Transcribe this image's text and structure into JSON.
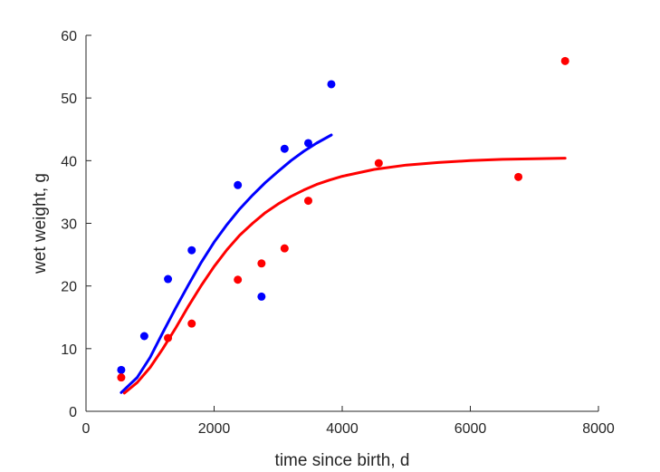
{
  "chart_data": {
    "type": "scatter",
    "xlabel": "time since birth, d",
    "ylabel": "wet weight, g",
    "xlim": [
      0,
      8000
    ],
    "ylim": [
      0,
      60
    ],
    "xticks": [
      "0",
      "2000",
      "4000",
      "6000",
      "8000"
    ],
    "yticks": [
      "0",
      "10",
      "20",
      "30",
      "40",
      "50",
      "60"
    ],
    "grid": false,
    "legend": "none",
    "series": [
      {
        "color": "#0000ff",
        "points": [
          [
            550,
            6.6
          ],
          [
            910,
            12.0
          ],
          [
            1280,
            21.1
          ],
          [
            1650,
            25.7
          ],
          [
            2370,
            36.1
          ],
          [
            2740,
            18.3
          ],
          [
            3100,
            41.9
          ],
          [
            3470,
            42.8
          ],
          [
            3830,
            52.2
          ]
        ],
        "fit_curve": [
          [
            550,
            3.0
          ],
          [
            800,
            5.4
          ],
          [
            1000,
            8.6
          ],
          [
            1200,
            12.6
          ],
          [
            1400,
            16.5
          ],
          [
            1600,
            20.2
          ],
          [
            1800,
            23.8
          ],
          [
            2000,
            27.0
          ],
          [
            2200,
            29.8
          ],
          [
            2400,
            32.3
          ],
          [
            2600,
            34.5
          ],
          [
            2800,
            36.5
          ],
          [
            3000,
            38.3
          ],
          [
            3200,
            40.0
          ],
          [
            3400,
            41.5
          ],
          [
            3600,
            42.8
          ],
          [
            3830,
            44.1
          ]
        ]
      },
      {
        "color": "#ff0000",
        "points": [
          [
            550,
            5.4
          ],
          [
            1280,
            11.7
          ],
          [
            1650,
            14.0
          ],
          [
            2370,
            21.0
          ],
          [
            2740,
            23.6
          ],
          [
            3100,
            26.0
          ],
          [
            3470,
            33.6
          ],
          [
            4570,
            39.6
          ],
          [
            6750,
            37.4
          ],
          [
            7480,
            55.9
          ]
        ],
        "fit_curve": [
          [
            600,
            2.9
          ],
          [
            800,
            4.6
          ],
          [
            1000,
            7.0
          ],
          [
            1200,
            10.0
          ],
          [
            1400,
            13.3
          ],
          [
            1600,
            16.8
          ],
          [
            1800,
            20.1
          ],
          [
            2000,
            23.1
          ],
          [
            2200,
            25.8
          ],
          [
            2400,
            28.1
          ],
          [
            2600,
            30.0
          ],
          [
            2800,
            31.7
          ],
          [
            3000,
            33.1
          ],
          [
            3200,
            34.3
          ],
          [
            3400,
            35.3
          ],
          [
            3600,
            36.2
          ],
          [
            3800,
            36.9
          ],
          [
            4000,
            37.5
          ],
          [
            4500,
            38.6
          ],
          [
            5000,
            39.3
          ],
          [
            5500,
            39.7
          ],
          [
            6000,
            40.0
          ],
          [
            6500,
            40.2
          ],
          [
            7000,
            40.3
          ],
          [
            7480,
            40.4
          ]
        ]
      }
    ]
  }
}
